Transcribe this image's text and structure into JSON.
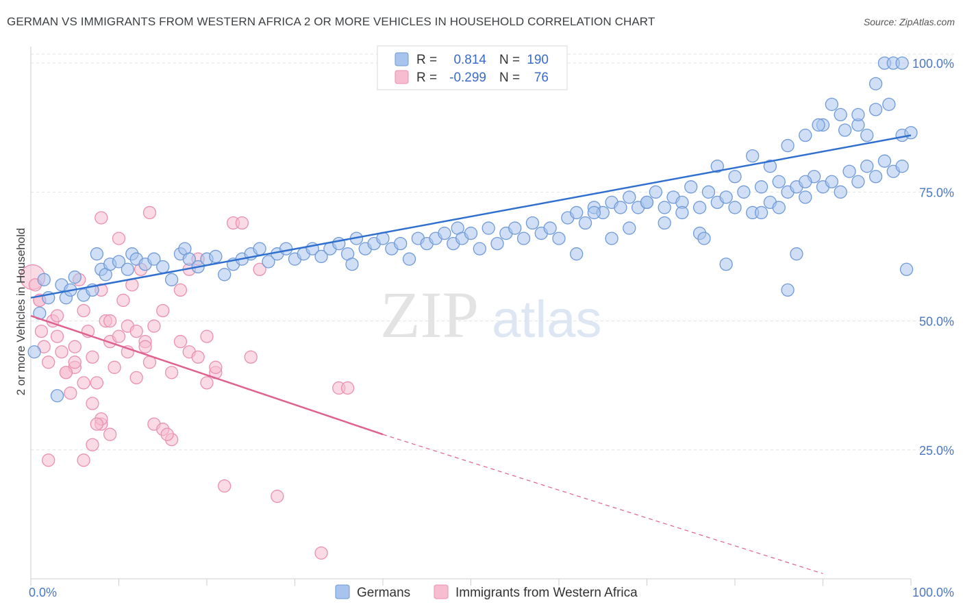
{
  "title": "GERMAN VS IMMIGRANTS FROM WESTERN AFRICA 2 OR MORE VEHICLES IN HOUSEHOLD CORRELATION CHART",
  "source": "Source: ZipAtlas.com",
  "watermark": {
    "zip": "ZIP",
    "atlas": "atlas"
  },
  "colors": {
    "germans_fill": "#a9c4ec",
    "germans_stroke": "#6f9ad8",
    "germans_line": "#2f6fd0",
    "immigrants_fill": "#f6bcd0",
    "immigrants_stroke": "#ea8fb0",
    "immigrants_line": "#e0608e",
    "axis_text": "#4a77c4"
  },
  "legend": {
    "rows": [
      {
        "r_label": "R =",
        "r_value": "0.814",
        "n_label": "N =",
        "n_value": "190"
      },
      {
        "r_label": "R =",
        "r_value": "-0.299",
        "n_label": "N =",
        "n_value": "76"
      }
    ]
  },
  "bottom_legend": [
    "Germans",
    "Immigrants from Western Africa"
  ],
  "chart_data": {
    "type": "scatter",
    "title": "GERMAN VS IMMIGRANTS FROM WESTERN AFRICA 2 OR MORE VEHICLES IN HOUSEHOLD CORRELATION CHART",
    "xlabel": "",
    "ylabel": "2 or more Vehicles in Household",
    "xlim": [
      0,
      100
    ],
    "ylim": [
      0,
      104
    ],
    "x_tick_labels": [
      "0.0%",
      "100.0%"
    ],
    "y_tick_labels": [
      "100.0%",
      "75.0%",
      "50.0%",
      "25.0%"
    ],
    "y_tick_values": [
      100,
      75,
      50,
      25
    ],
    "grid": true,
    "series": [
      {
        "name": "Germans",
        "r": 0.814,
        "n": 190,
        "trend": [
          [
            0,
            54.5
          ],
          [
            100,
            86
          ]
        ],
        "points": [
          [
            0.4,
            44
          ],
          [
            1,
            51.5
          ],
          [
            1.5,
            58
          ],
          [
            2,
            54.5
          ],
          [
            3,
            35.5
          ],
          [
            3.5,
            57
          ],
          [
            4,
            54.5
          ],
          [
            4.5,
            56
          ],
          [
            5,
            58.5
          ],
          [
            6,
            55
          ],
          [
            7,
            56
          ],
          [
            7.5,
            63
          ],
          [
            8,
            60
          ],
          [
            8.5,
            59
          ],
          [
            9,
            61
          ],
          [
            10,
            61.5
          ],
          [
            11,
            60
          ],
          [
            11.5,
            63
          ],
          [
            12,
            62
          ],
          [
            13,
            61
          ],
          [
            14,
            62
          ],
          [
            15,
            60.5
          ],
          [
            16,
            58
          ],
          [
            17,
            63
          ],
          [
            17.5,
            64
          ],
          [
            18,
            62
          ],
          [
            19,
            60.5
          ],
          [
            20,
            62
          ],
          [
            21,
            62.5
          ],
          [
            22,
            59
          ],
          [
            23,
            61
          ],
          [
            24,
            62
          ],
          [
            25,
            63
          ],
          [
            26,
            64
          ],
          [
            27,
            61.5
          ],
          [
            28,
            63
          ],
          [
            29,
            64
          ],
          [
            30,
            62
          ],
          [
            31,
            63
          ],
          [
            32,
            64
          ],
          [
            33,
            62.5
          ],
          [
            34,
            64
          ],
          [
            35,
            65
          ],
          [
            36,
            63
          ],
          [
            36.5,
            61
          ],
          [
            37,
            66
          ],
          [
            38,
            64
          ],
          [
            39,
            65
          ],
          [
            40,
            66
          ],
          [
            41,
            64
          ],
          [
            42,
            65
          ],
          [
            43,
            62
          ],
          [
            44,
            66
          ],
          [
            45,
            65
          ],
          [
            46,
            66
          ],
          [
            47,
            67
          ],
          [
            48,
            65
          ],
          [
            48.5,
            68
          ],
          [
            49,
            66
          ],
          [
            50,
            67
          ],
          [
            51,
            64
          ],
          [
            52,
            68
          ],
          [
            53,
            65
          ],
          [
            54,
            67
          ],
          [
            55,
            68
          ],
          [
            56,
            66
          ],
          [
            57,
            69
          ],
          [
            58,
            67
          ],
          [
            59,
            68
          ],
          [
            60,
            66
          ],
          [
            61,
            70
          ],
          [
            62,
            71
          ],
          [
            63,
            69
          ],
          [
            64,
            72
          ],
          [
            65,
            71
          ],
          [
            66,
            73
          ],
          [
            67,
            72
          ],
          [
            68,
            74
          ],
          [
            69,
            72
          ],
          [
            70,
            73
          ],
          [
            71,
            75
          ],
          [
            72,
            72
          ],
          [
            73,
            74
          ],
          [
            74,
            73
          ],
          [
            75,
            76
          ],
          [
            76,
            72
          ],
          [
            77,
            75
          ],
          [
            78,
            73
          ],
          [
            79,
            74
          ],
          [
            80,
            72
          ],
          [
            81,
            75
          ],
          [
            82,
            71
          ],
          [
            83,
            76
          ],
          [
            84,
            73
          ],
          [
            85,
            77
          ],
          [
            86,
            75
          ],
          [
            87,
            76
          ],
          [
            88,
            74
          ],
          [
            89,
            78
          ],
          [
            90,
            76
          ],
          [
            91,
            77
          ],
          [
            92,
            75
          ],
          [
            93,
            79
          ],
          [
            94,
            77
          ],
          [
            95,
            80
          ],
          [
            96,
            78
          ],
          [
            97,
            81
          ],
          [
            98,
            79
          ],
          [
            99,
            80
          ],
          [
            62,
            63
          ],
          [
            64,
            71
          ],
          [
            66,
            66
          ],
          [
            68,
            68
          ],
          [
            70,
            73
          ],
          [
            72,
            69
          ],
          [
            74,
            71
          ],
          [
            76,
            67
          ],
          [
            78,
            80
          ],
          [
            80,
            78
          ],
          [
            82,
            82
          ],
          [
            84,
            80
          ],
          [
            86,
            84
          ],
          [
            88,
            86
          ],
          [
            90,
            88
          ],
          [
            92,
            90
          ],
          [
            94,
            88
          ],
          [
            96,
            91
          ],
          [
            97.5,
            92
          ],
          [
            99,
            86
          ],
          [
            99.5,
            60
          ],
          [
            100,
            86.5
          ],
          [
            76.5,
            66
          ],
          [
            79,
            61
          ],
          [
            83,
            71
          ],
          [
            85,
            72
          ],
          [
            86,
            56
          ],
          [
            87,
            63
          ],
          [
            88,
            77
          ],
          [
            89.5,
            88
          ],
          [
            91,
            92
          ],
          [
            92.5,
            87
          ],
          [
            94,
            90
          ],
          [
            95,
            86
          ],
          [
            96,
            96
          ],
          [
            97,
            100
          ],
          [
            98,
            100
          ],
          [
            99,
            100
          ]
        ]
      },
      {
        "name": "Immigrants from Western Africa",
        "r": -0.299,
        "n": 76,
        "trend": [
          [
            0,
            51
          ],
          [
            40,
            28
          ]
        ],
        "trend_dashed": [
          [
            40,
            28
          ],
          [
            90,
            1
          ]
        ],
        "points": [
          [
            0.2,
            58.5
          ],
          [
            0.5,
            57
          ],
          [
            1,
            54
          ],
          [
            1.2,
            48
          ],
          [
            1.5,
            45
          ],
          [
            2,
            42
          ],
          [
            2.5,
            50
          ],
          [
            3,
            47
          ],
          [
            3.5,
            44
          ],
          [
            4,
            40
          ],
          [
            4.5,
            36
          ],
          [
            5,
            41
          ],
          [
            5.5,
            58
          ],
          [
            6,
            52
          ],
          [
            6.5,
            48
          ],
          [
            7,
            43
          ],
          [
            7.5,
            38
          ],
          [
            8,
            56
          ],
          [
            8.5,
            50
          ],
          [
            9,
            46
          ],
          [
            9.5,
            41
          ],
          [
            10,
            66
          ],
          [
            10.5,
            54
          ],
          [
            11,
            49
          ],
          [
            11.5,
            57
          ],
          [
            12,
            39
          ],
          [
            12.5,
            60
          ],
          [
            13,
            46
          ],
          [
            13.5,
            42
          ],
          [
            14,
            30
          ],
          [
            15,
            29
          ],
          [
            16,
            27
          ],
          [
            17,
            56
          ],
          [
            18,
            44
          ],
          [
            19,
            62
          ],
          [
            20,
            47
          ],
          [
            21,
            40
          ],
          [
            22,
            18
          ],
          [
            23,
            69
          ],
          [
            25,
            43
          ],
          [
            26,
            60
          ],
          [
            28,
            16
          ],
          [
            33,
            5
          ],
          [
            35,
            37
          ],
          [
            6,
            23
          ],
          [
            7,
            26
          ],
          [
            8,
            30
          ],
          [
            9,
            28
          ],
          [
            2,
            23
          ],
          [
            1,
            54
          ],
          [
            3,
            51
          ],
          [
            5,
            45
          ],
          [
            6,
            38
          ],
          [
            7,
            34
          ],
          [
            8,
            31
          ],
          [
            4,
            40
          ],
          [
            5,
            42
          ],
          [
            9,
            50
          ],
          [
            10,
            47
          ],
          [
            11,
            44
          ],
          [
            12,
            48
          ],
          [
            13,
            45
          ],
          [
            14,
            49
          ],
          [
            15,
            52
          ],
          [
            16,
            40
          ],
          [
            17,
            46
          ],
          [
            18,
            60
          ],
          [
            19,
            43
          ],
          [
            20,
            38
          ],
          [
            21,
            41
          ],
          [
            13.5,
            71
          ],
          [
            8,
            70
          ],
          [
            24,
            69
          ],
          [
            36,
            37
          ],
          [
            15.5,
            28
          ],
          [
            7.5,
            30
          ]
        ]
      }
    ]
  }
}
